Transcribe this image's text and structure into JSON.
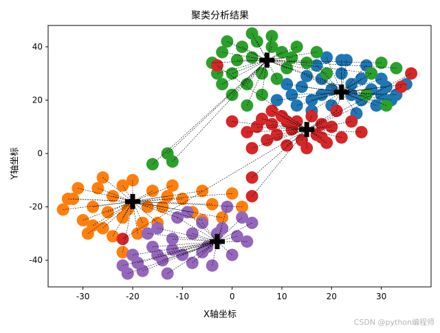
{
  "chart_data": {
    "type": "scatter",
    "title": "聚类分析结果",
    "xlabel": "X轴坐标",
    "ylabel": "Y轴坐标",
    "xlim": [
      -37,
      40
    ],
    "ylim": [
      -50,
      48
    ],
    "xticks": [
      -30,
      -20,
      -10,
      0,
      10,
      20,
      30
    ],
    "yticks": [
      -40,
      -20,
      0,
      20,
      40
    ],
    "centroid_marker": "black plus",
    "connection_style": "black dashed lines from each point to its cluster centroid",
    "clusters": [
      {
        "color": "#1f77b4",
        "centroid": [
          22,
          23
        ],
        "points": [
          [
            12,
            22
          ],
          [
            14,
            25
          ],
          [
            16,
            20
          ],
          [
            18,
            28
          ],
          [
            20,
            18
          ],
          [
            22,
            30
          ],
          [
            24,
            26
          ],
          [
            26,
            20
          ],
          [
            28,
            24
          ],
          [
            30,
            28
          ],
          [
            32,
            20
          ],
          [
            17,
            33
          ],
          [
            19,
            36
          ],
          [
            23,
            35
          ],
          [
            27,
            33
          ],
          [
            15,
            29
          ],
          [
            13,
            18
          ],
          [
            21,
            16
          ],
          [
            25,
            15
          ],
          [
            29,
            18
          ],
          [
            31,
            25
          ],
          [
            33,
            22
          ],
          [
            11,
            26
          ],
          [
            20,
            24
          ],
          [
            24,
            22
          ],
          [
            26,
            28
          ],
          [
            9,
            20
          ],
          [
            35,
            26
          ],
          [
            22,
            35
          ],
          [
            18,
            22
          ],
          [
            28,
            30
          ],
          [
            30,
            22
          ],
          [
            16,
            16
          ]
        ]
      },
      {
        "color": "#ff7f0e",
        "centroid": [
          -20,
          -18
        ],
        "points": [
          [
            -34,
            -21
          ],
          [
            -32,
            -17
          ],
          [
            -30,
            -25
          ],
          [
            -28,
            -20
          ],
          [
            -27,
            -13
          ],
          [
            -26,
            -28
          ],
          [
            -24,
            -16
          ],
          [
            -24,
            -31
          ],
          [
            -22,
            -24
          ],
          [
            -20,
            -10
          ],
          [
            -18,
            -26
          ],
          [
            -16,
            -14
          ],
          [
            -14,
            -20
          ],
          [
            -12,
            -12
          ],
          [
            -10,
            -17
          ],
          [
            -8,
            -22
          ],
          [
            -6,
            -14
          ],
          [
            -4,
            -19
          ],
          [
            -2,
            -24
          ],
          [
            0,
            -15
          ],
          [
            2,
            -20
          ],
          [
            -22,
            -37
          ],
          [
            -29,
            -30
          ],
          [
            -26,
            -9
          ],
          [
            -19,
            -30
          ],
          [
            -15,
            -26
          ],
          [
            -11,
            -24
          ],
          [
            -31,
            -13
          ],
          [
            -33,
            -17
          ],
          [
            -28,
            -27
          ],
          [
            -22,
            -12
          ],
          [
            -17,
            -20
          ],
          [
            -6,
            -25
          ],
          [
            -21,
            -21
          ],
          [
            -13,
            -16
          ],
          [
            -25,
            -22
          ]
        ]
      },
      {
        "color": "#2ca02c",
        "centroid": [
          7,
          35
        ],
        "points": [
          [
            -4,
            34
          ],
          [
            -2,
            38
          ],
          [
            0,
            30
          ],
          [
            2,
            40
          ],
          [
            3,
            26
          ],
          [
            4,
            36
          ],
          [
            5,
            42
          ],
          [
            6,
            30
          ],
          [
            8,
            40
          ],
          [
            9,
            28
          ],
          [
            10,
            38
          ],
          [
            11,
            32
          ],
          [
            13,
            40
          ],
          [
            15,
            34
          ],
          [
            17,
            38
          ],
          [
            19,
            30
          ],
          [
            0,
            22
          ],
          [
            -2,
            26
          ],
          [
            3,
            18
          ],
          [
            6,
            22
          ],
          [
            -3,
            30
          ],
          [
            28,
            30
          ],
          [
            30,
            34
          ],
          [
            31,
            18
          ],
          [
            33,
            32
          ],
          [
            -16,
            -4
          ],
          [
            -13,
            0
          ],
          [
            -12,
            -3
          ],
          [
            4,
            45
          ],
          [
            1,
            35
          ],
          [
            8,
            44
          ],
          [
            12,
            36
          ],
          [
            -1,
            42
          ],
          [
            27,
            22
          ]
        ]
      },
      {
        "color": "#d62728",
        "centroid": [
          15,
          9
        ],
        "points": [
          [
            0,
            12
          ],
          [
            3,
            8
          ],
          [
            5,
            10
          ],
          [
            6,
            13
          ],
          [
            7,
            5
          ],
          [
            8,
            11
          ],
          [
            9,
            7
          ],
          [
            10,
            14
          ],
          [
            11,
            3
          ],
          [
            12,
            9
          ],
          [
            13,
            12
          ],
          [
            14,
            5
          ],
          [
            16,
            14
          ],
          [
            17,
            7
          ],
          [
            18,
            11
          ],
          [
            19,
            4
          ],
          [
            20,
            10
          ],
          [
            21,
            16
          ],
          [
            22,
            6
          ],
          [
            24,
            12
          ],
          [
            26,
            8
          ],
          [
            4,
            2
          ],
          [
            8,
            16
          ],
          [
            34,
            25
          ],
          [
            36,
            30
          ],
          [
            -3,
            33
          ],
          [
            4,
            -9
          ],
          [
            4,
            -16
          ],
          [
            -22,
            -32
          ],
          [
            15,
            2
          ],
          [
            11,
            12
          ],
          [
            18,
            6
          ]
        ]
      },
      {
        "color": "#9467bd",
        "centroid": [
          -3,
          -33
        ],
        "points": [
          [
            -22,
            -42
          ],
          [
            -20,
            -38
          ],
          [
            -18,
            -44
          ],
          [
            -16,
            -35
          ],
          [
            -15,
            -28
          ],
          [
            -14,
            -40
          ],
          [
            -12,
            -32
          ],
          [
            -11,
            -24
          ],
          [
            -10,
            -38
          ],
          [
            -8,
            -30
          ],
          [
            -8,
            -41
          ],
          [
            -6,
            -26
          ],
          [
            -5,
            -35
          ],
          [
            -4,
            -42
          ],
          [
            -2,
            -28
          ],
          [
            0,
            -38
          ],
          [
            1,
            -31
          ],
          [
            2,
            -24
          ],
          [
            3,
            -33
          ],
          [
            4,
            -26
          ],
          [
            -13,
            -45
          ],
          [
            -17,
            -30
          ],
          [
            -9,
            -22
          ],
          [
            -1,
            -20
          ],
          [
            -21,
            -45
          ],
          [
            -19,
            -41
          ],
          [
            -6,
            -37
          ],
          [
            -3,
            -30
          ],
          [
            -12,
            -36
          ],
          [
            -15,
            -38
          ]
        ]
      }
    ]
  },
  "watermark": "CSDN @python编程师"
}
